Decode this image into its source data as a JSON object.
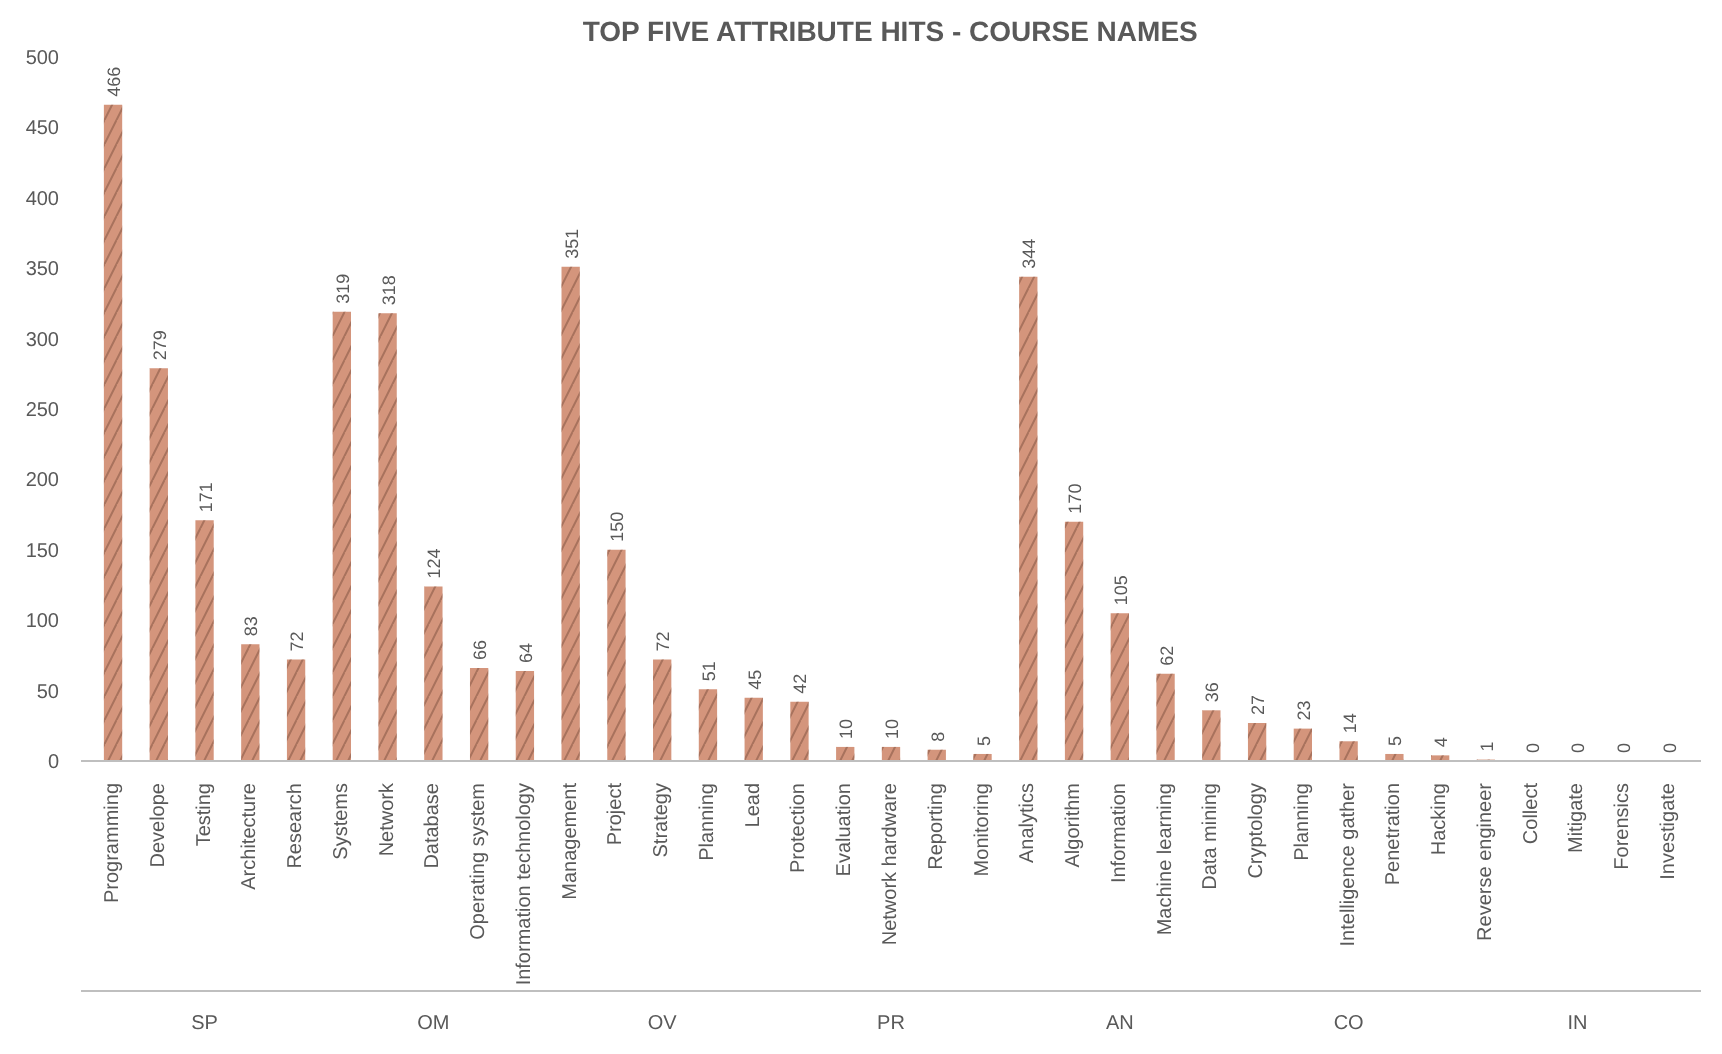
{
  "chart_data": {
    "type": "bar",
    "title": "TOP FIVE ATTRIBUTE HITS - COURSE NAMES",
    "categories": [
      "Programming",
      "Develope",
      "Testing",
      "Architecture",
      "Research",
      "Systems",
      "Network",
      "Database",
      "Operating system",
      "Information technology",
      "Management",
      "Project",
      "Strategy",
      "Planning",
      "Lead",
      "Protection",
      "Evaluation",
      "Network hardware",
      "Reporting",
      "Monitoring",
      "Analytics",
      "Algorithm",
      "Information",
      "Machine learning",
      "Data mining",
      "Cryptology",
      "Planning",
      "Intelligence gather",
      "Penetration",
      "Hacking",
      "Reverse engineer",
      "Collect",
      "Mitigate",
      "Forensics",
      "Investigate"
    ],
    "values": [
      466,
      279,
      171,
      83,
      72,
      319,
      318,
      124,
      66,
      64,
      351,
      150,
      72,
      51,
      45,
      42,
      10,
      10,
      8,
      5,
      344,
      170,
      105,
      62,
      36,
      27,
      23,
      14,
      5,
      4,
      1,
      0,
      0,
      0,
      0
    ],
    "color": "#d4957c",
    "ylim": [
      0,
      500
    ],
    "yticks": [
      0,
      50,
      100,
      150,
      200,
      250,
      300,
      350,
      400,
      450,
      500
    ],
    "data_labels": true,
    "grid": false,
    "annotations": [
      "SP",
      "OM",
      "OV",
      "PR",
      "AN",
      "CO",
      "IN"
    ]
  }
}
